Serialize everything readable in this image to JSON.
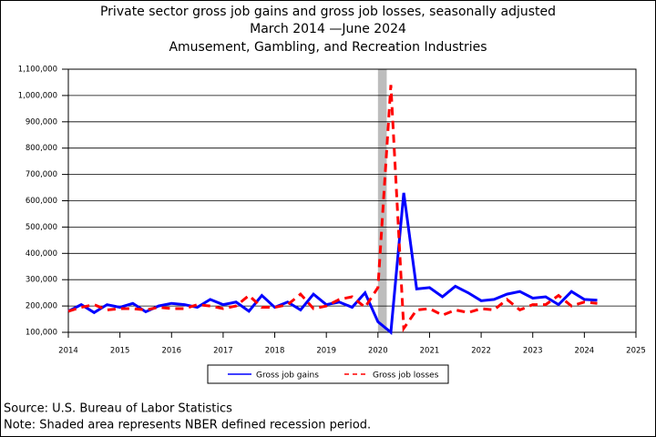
{
  "chart_data": {
    "type": "line",
    "title": "Private sector gross job gains and gross job losses, seasonally adjusted",
    "subtitle": "March 2014 —June 2024",
    "industry": "Amusement, Gambling, and Recreation Industries",
    "x": [
      2014.0,
      2014.25,
      2014.5,
      2014.75,
      2015.0,
      2015.25,
      2015.5,
      2015.75,
      2016.0,
      2016.25,
      2016.5,
      2016.75,
      2017.0,
      2017.25,
      2017.5,
      2017.75,
      2018.0,
      2018.25,
      2018.5,
      2018.75,
      2019.0,
      2019.25,
      2019.5,
      2019.75,
      2020.0,
      2020.25,
      2020.5,
      2020.75,
      2021.0,
      2021.25,
      2021.5,
      2021.75,
      2022.0,
      2022.25,
      2022.5,
      2022.75,
      2023.0,
      2023.25,
      2023.5,
      2023.75,
      2024.0,
      2024.25
    ],
    "series": [
      {
        "name": "Gross job gains",
        "color": "#0000ff",
        "dash": false,
        "values": [
          180000,
          205000,
          175000,
          205000,
          195000,
          210000,
          178000,
          200000,
          210000,
          205000,
          195000,
          225000,
          205000,
          215000,
          180000,
          240000,
          195000,
          215000,
          185000,
          245000,
          205000,
          215000,
          195000,
          250000,
          140000,
          100000,
          630000,
          265000,
          270000,
          235000,
          275000,
          250000,
          220000,
          225000,
          245000,
          255000,
          230000,
          235000,
          205000,
          255000,
          225000,
          222000
        ]
      },
      {
        "name": "Gross job losses",
        "color": "#ff0000",
        "dash": true,
        "values": [
          180000,
          195000,
          205000,
          185000,
          190000,
          190000,
          185000,
          195000,
          190000,
          190000,
          205000,
          200000,
          190000,
          200000,
          240000,
          195000,
          195000,
          205000,
          245000,
          190000,
          200000,
          225000,
          235000,
          195000,
          270000,
          1040000,
          115000,
          185000,
          190000,
          165000,
          185000,
          175000,
          190000,
          185000,
          225000,
          185000,
          205000,
          205000,
          240000,
          200000,
          215000,
          210000
        ]
      }
    ],
    "recession": [
      2020.0,
      2020.17
    ],
    "xlim": [
      2014,
      2025
    ],
    "xticks": [
      2014,
      2015,
      2016,
      2017,
      2018,
      2019,
      2020,
      2021,
      2022,
      2023,
      2024,
      2025
    ],
    "ylim": [
      100000,
      1100000
    ],
    "yticks": [
      {
        "value": 100000,
        "label": "100,000"
      },
      {
        "value": 200000,
        "label": "200,000"
      },
      {
        "value": 300000,
        "label": "300,000"
      },
      {
        "value": 400000,
        "label": "400,000"
      },
      {
        "value": 500000,
        "label": "500,000"
      },
      {
        "value": 600000,
        "label": "600,000"
      },
      {
        "value": 700000,
        "label": "700,000"
      },
      {
        "value": 800000,
        "label": "800,000"
      },
      {
        "value": 900000,
        "label": "900,000"
      },
      {
        "value": 1000000,
        "label": "1,000,000"
      },
      {
        "value": 1100000,
        "label": "1,100,000"
      }
    ],
    "grid": true,
    "source": "Source: U.S. Bureau of Labor Statistics",
    "note": "Note: Shaded area represents NBER defined recession period."
  }
}
